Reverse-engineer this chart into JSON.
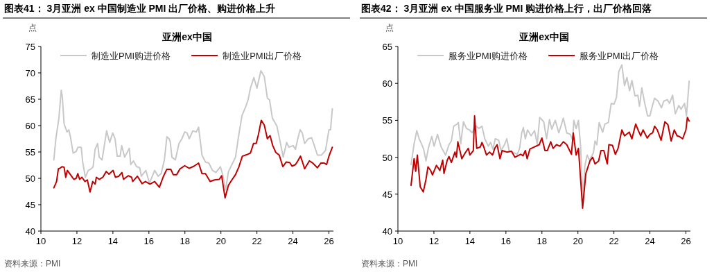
{
  "chart_data": [
    {
      "type": "line",
      "title": "图表41：  3月亚洲 ex 中国制造业 PMI 出厂价格、购进价格上升",
      "subtitle": "亚洲ex中国",
      "ylabel": "点",
      "annotations": [
        "资料来源：PMI"
      ],
      "xlim": [
        10,
        26.25
      ],
      "xticks": [
        10,
        12,
        14,
        16,
        18,
        20,
        22,
        24,
        26
      ],
      "ylim": [
        40,
        75
      ],
      "yticks": [
        40,
        45,
        50,
        55,
        60,
        65,
        70,
        75
      ],
      "grid": false,
      "legend": "top",
      "marker": "none",
      "line_style": "solid",
      "series": [
        {
          "name": "制造业PMI购进价格",
          "color": "#c8c8c8",
          "x": [
            10.72,
            10.83,
            11.0,
            11.13,
            11.19,
            11.29,
            11.45,
            11.55,
            11.64,
            11.79,
            11.96,
            12.06,
            12.24,
            12.32,
            12.47,
            12.63,
            12.79,
            12.9,
            13.01,
            13.15,
            13.24,
            13.4,
            13.65,
            13.82,
            13.99,
            14.12,
            14.24,
            14.4,
            14.49,
            14.65,
            14.91,
            14.99,
            15.14,
            15.32,
            15.49,
            15.58,
            15.83,
            16.03,
            16.19,
            16.32,
            16.51,
            16.68,
            16.86,
            17.0,
            17.12,
            17.18,
            17.28,
            17.47,
            17.67,
            17.83,
            17.99,
            18.12,
            18.24,
            18.44,
            18.63,
            18.76,
            18.95,
            19.14,
            19.33,
            19.53,
            19.72,
            19.97,
            20.1,
            20.26,
            20.42,
            20.61,
            20.81,
            21.0,
            21.17,
            21.38,
            21.51,
            21.64,
            21.83,
            22.0,
            22.22,
            22.41,
            22.58,
            22.7,
            22.86,
            23.11,
            23.31,
            23.46,
            23.65,
            23.78,
            24.01,
            24.14,
            24.27,
            24.4,
            24.52,
            24.65,
            24.85,
            25.04,
            25.19,
            25.36,
            25.58,
            25.81,
            26.0,
            26.09,
            26.19
          ],
          "values": [
            53.5,
            57.5,
            61.4,
            66.7,
            65.4,
            60.3,
            58.8,
            59.2,
            57.9,
            54.8,
            55.1,
            55.9,
            55.9,
            53.1,
            50.2,
            51.5,
            51.8,
            52.2,
            55.5,
            56.6,
            54.0,
            53.5,
            59.0,
            56.8,
            58.6,
            57.5,
            54.2,
            54.2,
            56.2,
            54.0,
            55.7,
            52.6,
            53.3,
            52.2,
            52.0,
            50.4,
            51.5,
            49.1,
            50.4,
            51.5,
            50.4,
            50.9,
            53.5,
            57.9,
            57.5,
            57.0,
            54.0,
            53.5,
            56.6,
            57.5,
            58.8,
            58.6,
            57.5,
            59.0,
            58.8,
            59.7,
            54.4,
            53.1,
            52.9,
            51.5,
            51.1,
            52.2,
            50.7,
            47.8,
            51.3,
            52.6,
            54.0,
            58.4,
            61.9,
            63.6,
            64.9,
            67.1,
            69.1,
            67.1,
            70.4,
            69.3,
            65.2,
            64.9,
            61.4,
            59.9,
            56.6,
            54.0,
            56.8,
            55.9,
            56.2,
            55.5,
            57.5,
            59.2,
            58.6,
            56.6,
            57.5,
            57.7,
            56.2,
            54.4,
            54.4,
            55.3,
            59.2,
            59.2,
            63.2
          ]
        },
        {
          "name": "制造业PMI出厂价格",
          "color": "#c00000",
          "x": [
            10.72,
            10.87,
            10.97,
            11.06,
            11.17,
            11.29,
            11.38,
            11.47,
            11.64,
            11.83,
            11.96,
            12.05,
            12.15,
            12.28,
            12.45,
            12.58,
            12.73,
            12.88,
            13.01,
            13.08,
            13.24,
            13.44,
            13.63,
            13.78,
            14.01,
            14.14,
            14.33,
            14.5,
            14.59,
            14.85,
            15.04,
            15.1,
            15.36,
            15.62,
            15.81,
            16.06,
            16.32,
            16.58,
            16.81,
            16.99,
            17.22,
            17.35,
            17.54,
            17.73,
            17.99,
            18.24,
            18.5,
            18.76,
            18.95,
            19.14,
            19.4,
            19.65,
            19.91,
            20.04,
            20.23,
            20.42,
            20.61,
            20.81,
            21.0,
            21.19,
            21.45,
            21.64,
            21.81,
            21.96,
            22.09,
            22.24,
            22.41,
            22.58,
            22.73,
            22.88,
            23.05,
            23.24,
            23.44,
            23.63,
            23.82,
            23.95,
            24.14,
            24.27,
            24.42,
            24.53,
            24.65,
            24.91,
            25.1,
            25.36,
            25.55,
            25.74,
            25.87,
            26.0,
            26.19
          ],
          "values": [
            48.2,
            49.4,
            51.8,
            51.9,
            52.2,
            52.1,
            50.2,
            51.5,
            50.7,
            49.8,
            50.0,
            50.9,
            49.8,
            50.2,
            49.4,
            49.7,
            47.4,
            49.4,
            48.9,
            50.2,
            49.8,
            50.2,
            51.3,
            50.8,
            51.5,
            50.2,
            50.4,
            51.1,
            49.8,
            50.5,
            50.2,
            49.4,
            50.4,
            49.0,
            49.4,
            48.9,
            49.4,
            48.3,
            50.4,
            51.7,
            51.7,
            50.7,
            50.7,
            51.8,
            52.4,
            51.9,
            52.3,
            52.9,
            50.9,
            50.9,
            49.4,
            49.7,
            49.8,
            50.5,
            46.3,
            48.7,
            49.7,
            50.7,
            52.2,
            54.2,
            54.5,
            54.8,
            56.6,
            56.6,
            58.4,
            61.0,
            60.1,
            57.5,
            58.1,
            56.2,
            54.9,
            54.4,
            52.2,
            53.1,
            53.0,
            52.3,
            52.6,
            53.3,
            54.2,
            53.1,
            51.8,
            53.3,
            52.9,
            52.0,
            52.9,
            52.9,
            52.6,
            54.2,
            55.9
          ]
        }
      ]
    },
    {
      "type": "line",
      "title": "图表42：  3月亚洲 ex 中国服务业 PMI 购进价格上行，出厂价格回落",
      "subtitle": "亚洲ex中国",
      "ylabel": "点",
      "annotations": [
        "资料来源：PMI"
      ],
      "xlim": [
        10,
        26.25
      ],
      "xticks": [
        10,
        12,
        14,
        16,
        18,
        20,
        22,
        24,
        26
      ],
      "ylim": [
        40,
        65
      ],
      "yticks": [
        40,
        45,
        50,
        55,
        60,
        65
      ],
      "grid": false,
      "legend": "top",
      "marker": "none",
      "line_style": "solid",
      "series": [
        {
          "name": "服务业PMI购进价格",
          "color": "#c8c8c8",
          "x": [
            10.73,
            10.9,
            11.05,
            11.18,
            11.31,
            11.43,
            11.56,
            11.69,
            11.88,
            12.01,
            12.2,
            12.4,
            12.65,
            12.84,
            12.97,
            13.1,
            13.29,
            13.36,
            13.49,
            13.64,
            13.81,
            13.97,
            14.13,
            14.29,
            14.51,
            14.67,
            14.83,
            15.02,
            15.15,
            15.28,
            15.41,
            15.6,
            15.73,
            15.92,
            16.05,
            16.18,
            16.37,
            16.63,
            16.76,
            16.88,
            16.97,
            17.08,
            17.2,
            17.4,
            17.59,
            17.74,
            17.88,
            18.1,
            18.26,
            18.42,
            18.55,
            18.74,
            18.94,
            19.19,
            19.38,
            19.58,
            19.71,
            19.77,
            19.9,
            20.03,
            20.15,
            20.28,
            20.38,
            20.51,
            20.64,
            20.86,
            20.95,
            21.05,
            21.18,
            21.37,
            21.5,
            21.69,
            21.85,
            22.01,
            22.14,
            22.27,
            22.44,
            22.59,
            22.72,
            22.87,
            23.0,
            23.17,
            23.33,
            23.42,
            23.55,
            23.72,
            23.87,
            24.0,
            24.13,
            24.26,
            24.45,
            24.64,
            24.77,
            24.96,
            25.09,
            25.26,
            25.41,
            25.6,
            25.73,
            25.92,
            26.03,
            26.18
          ],
          "values": [
            49.0,
            51.8,
            53.6,
            52.5,
            51.8,
            51.1,
            49.5,
            51.2,
            52.8,
            51.5,
            53.1,
            51.4,
            50.3,
            51.7,
            52.2,
            54.2,
            54.5,
            54.7,
            51.8,
            54.8,
            53.9,
            53.7,
            53.3,
            54.3,
            53.9,
            54.2,
            52.5,
            51.5,
            52.0,
            51.1,
            52.5,
            52.3,
            50.9,
            51.7,
            52.5,
            50.9,
            50.7,
            50.4,
            51.2,
            53.3,
            54.0,
            52.5,
            53.7,
            52.9,
            53.6,
            51.8,
            55.4,
            54.8,
            52.5,
            55.1,
            53.8,
            55.0,
            53.3,
            55.3,
            53.3,
            53.1,
            52.3,
            55.0,
            53.9,
            55.0,
            51.4,
            44.0,
            48.7,
            50.3,
            49.6,
            50.6,
            52.2,
            51.7,
            54.7,
            53.4,
            54.5,
            54.7,
            57.3,
            57.2,
            58.1,
            61.6,
            62.5,
            59.7,
            60.8,
            59.0,
            60.4,
            58.3,
            58.4,
            56.9,
            59.4,
            57.2,
            55.6,
            55.6,
            56.9,
            58.0,
            57.6,
            56.7,
            57.6,
            57.8,
            57.3,
            58.4,
            55.9,
            57.0,
            56.5,
            57.3,
            55.6,
            60.3
          ]
        },
        {
          "name": "服务业PMI出厂价格",
          "color": "#c00000",
          "x": [
            10.73,
            10.9,
            10.99,
            11.08,
            11.24,
            11.41,
            11.56,
            11.67,
            11.82,
            11.92,
            12.14,
            12.33,
            12.49,
            12.56,
            12.74,
            12.84,
            12.97,
            13.17,
            13.25,
            13.33,
            13.55,
            13.74,
            13.91,
            14.0,
            14.19,
            14.26,
            14.38,
            14.58,
            14.67,
            14.77,
            14.92,
            15.09,
            15.26,
            15.38,
            15.51,
            15.67,
            15.79,
            16.05,
            16.31,
            16.5,
            16.82,
            16.95,
            17.08,
            17.18,
            17.33,
            17.59,
            17.85,
            18.0,
            18.17,
            18.3,
            18.49,
            18.62,
            18.81,
            19.0,
            19.19,
            19.38,
            19.64,
            19.74,
            19.9,
            20.03,
            20.26,
            20.44,
            20.67,
            20.82,
            20.95,
            21.15,
            21.28,
            21.44,
            21.63,
            21.72,
            21.92,
            22.08,
            22.23,
            22.44,
            22.59,
            22.85,
            23.0,
            23.21,
            23.36,
            23.49,
            23.62,
            23.85,
            24.0,
            24.15,
            24.26,
            24.41,
            24.62,
            24.83,
            25.0,
            25.18,
            25.35,
            25.51,
            25.64,
            25.82,
            26.0,
            26.08,
            26.18
          ],
          "values": [
            46.2,
            49.8,
            48.1,
            50.3,
            46.0,
            45.3,
            47.0,
            48.7,
            48.2,
            47.6,
            48.9,
            48.2,
            49.6,
            47.8,
            49.6,
            50.1,
            49.3,
            50.7,
            50.0,
            52.1,
            49.8,
            50.6,
            51.2,
            50.3,
            50.9,
            55.6,
            51.2,
            51.4,
            52.0,
            51.4,
            50.3,
            50.7,
            50.3,
            51.2,
            51.7,
            49.8,
            50.9,
            50.7,
            50.8,
            50.0,
            50.4,
            50.2,
            50.9,
            49.8,
            51.1,
            51.4,
            51.7,
            52.6,
            50.9,
            50.9,
            52.1,
            51.2,
            51.7,
            51.5,
            52.1,
            51.7,
            50.4,
            53.3,
            50.3,
            51.2,
            43.1,
            47.8,
            49.5,
            50.0,
            49.1,
            49.5,
            50.9,
            50.9,
            49.1,
            51.7,
            51.6,
            50.4,
            51.2,
            53.7,
            52.9,
            53.4,
            52.5,
            54.5,
            53.6,
            52.9,
            53.7,
            52.6,
            53.1,
            53.3,
            54.2,
            53.7,
            52.3,
            54.8,
            54.4,
            52.2,
            53.7,
            52.9,
            52.8,
            52.5,
            53.7,
            55.4,
            54.9
          ]
        }
      ]
    }
  ]
}
